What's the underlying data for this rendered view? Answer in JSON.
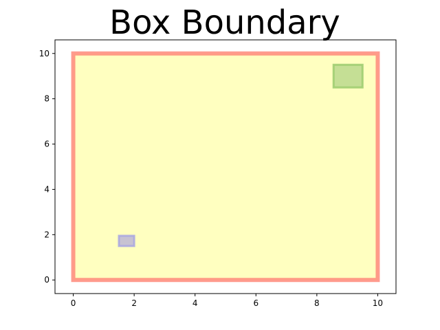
{
  "chart_data": {
    "type": "box-boundary",
    "title": "Box Boundary",
    "xlabel": "",
    "ylabel": "",
    "xlim": [
      -0.6,
      10.6
    ],
    "ylim": [
      -0.6,
      10.6
    ],
    "xticks": [
      0,
      2,
      4,
      6,
      8,
      10
    ],
    "yticks": [
      0,
      2,
      4,
      6,
      8,
      10
    ],
    "grid": false,
    "boxes": [
      {
        "x0": 0.0,
        "y0": 0.0,
        "x1": 10.0,
        "y1": 10.0,
        "fill": "#ffffc0",
        "edge": "#ff8a7a"
      },
      {
        "x0": 8.55,
        "y0": 8.5,
        "x1": 9.5,
        "y1": 9.5,
        "fill": "#c5df95",
        "edge": "#9ccc6e"
      },
      {
        "x0": 1.5,
        "y0": 1.5,
        "x1": 2.0,
        "y1": 1.95,
        "fill": "#c7c2d2",
        "edge": "#a9a7e2"
      }
    ]
  }
}
